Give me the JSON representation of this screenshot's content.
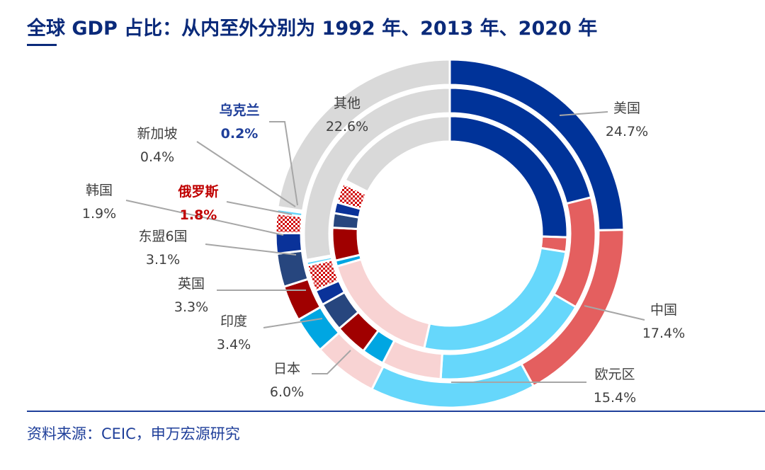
{
  "title": "全球 GDP 占比：从内至外分别为 1992 年、2013 年、2020 年",
  "source": "资料来源：CEIC，申万宏源研究",
  "chart_data": {
    "type": "pie",
    "subtype": "multi-ring donut",
    "rings": [
      "1992",
      "2013",
      "2020"
    ],
    "categories": [
      "美国",
      "中国",
      "欧元区",
      "日本",
      "印度",
      "英国",
      "东盟6国",
      "韩国",
      "俄罗斯",
      "新加坡",
      "乌克兰",
      "其他"
    ],
    "colors": [
      "#003399",
      "#e45f5f",
      "#66d7fb",
      "#f8d3d3",
      "#00a6e2",
      "#a00000",
      "#27467e",
      "#0a3299",
      "checker-red",
      "#66d7fb",
      "#66d7fb",
      "#d9d9d9"
    ],
    "series": [
      {
        "name": "1992",
        "values": [
          25.5,
          2.0,
          26.0,
          17.0,
          0.8,
          4.5,
          2.0,
          1.5,
          2.7,
          0.2,
          0.3,
          17.5
        ]
      },
      {
        "name": "2013",
        "values": [
          21.0,
          12.4,
          17.6,
          6.6,
          2.5,
          3.6,
          3.2,
          1.7,
          2.9,
          0.4,
          0.2,
          27.9
        ]
      },
      {
        "name": "2020",
        "values": [
          24.7,
          17.4,
          15.4,
          6.0,
          3.4,
          3.3,
          3.1,
          1.9,
          1.8,
          0.4,
          0.2,
          22.6
        ]
      }
    ],
    "labels": [
      {
        "name": "美国",
        "value": "24.7%",
        "highlight": ""
      },
      {
        "name": "中国",
        "value": "17.4%",
        "highlight": ""
      },
      {
        "name": "欧元区",
        "value": "15.4%",
        "highlight": ""
      },
      {
        "name": "日本",
        "value": "6.0%",
        "highlight": ""
      },
      {
        "name": "印度",
        "value": "3.4%",
        "highlight": ""
      },
      {
        "name": "英国",
        "value": "3.3%",
        "highlight": ""
      },
      {
        "name": "东盟6国",
        "value": "3.1%",
        "highlight": ""
      },
      {
        "name": "韩国",
        "value": "1.9%",
        "highlight": ""
      },
      {
        "name": "俄罗斯",
        "value": "1.8%",
        "highlight": "#c00000"
      },
      {
        "name": "新加坡",
        "value": "0.4%",
        "highlight": ""
      },
      {
        "name": "乌克兰",
        "value": "0.2%",
        "highlight": "#1f3f9a"
      },
      {
        "name": "其他",
        "value": "22.6%",
        "highlight": ""
      }
    ]
  }
}
